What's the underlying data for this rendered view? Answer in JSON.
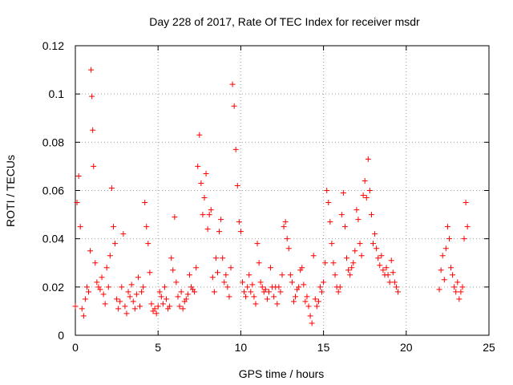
{
  "chart_data": {
    "type": "scatter",
    "title": "Day 228 of 2017, Rate Of TEC Index for receiver msdr",
    "xlabel": "GPS time / hours",
    "ylabel": "ROTI / TECUs",
    "xlim": [
      0,
      25
    ],
    "ylim": [
      0,
      0.12
    ],
    "x_ticks": [
      0,
      5,
      10,
      15,
      20,
      25
    ],
    "x_tick_labels": [
      "0",
      "5",
      "10",
      "15",
      "20",
      "25"
    ],
    "y_ticks": [
      0,
      0.02,
      0.04,
      0.06,
      0.08,
      0.1,
      0.12
    ],
    "y_tick_labels": [
      "0",
      "0.02",
      "0.04",
      "0.06",
      "0.08",
      "0.1",
      "0.12"
    ],
    "grid": true,
    "marker": "+",
    "color": "#ff0000",
    "series": [
      {
        "name": "",
        "x": [
          0.0,
          0.1,
          0.2,
          0.3,
          0.4,
          0.5,
          0.6,
          0.7,
          0.8,
          0.9,
          0.95,
          1.0,
          1.05,
          1.1,
          1.2,
          1.3,
          1.4,
          1.5,
          1.6,
          1.7,
          1.8,
          1.9,
          2.0,
          2.1,
          2.2,
          2.3,
          2.4,
          2.5,
          2.6,
          2.7,
          2.8,
          2.9,
          3.0,
          3.1,
          3.2,
          3.3,
          3.4,
          3.5,
          3.6,
          3.7,
          3.8,
          3.9,
          4.0,
          4.1,
          4.2,
          4.3,
          4.4,
          4.5,
          4.6,
          4.7,
          4.8,
          4.9,
          5.0,
          5.1,
          5.2,
          5.3,
          5.4,
          5.5,
          5.6,
          5.7,
          5.8,
          5.9,
          6.0,
          6.1,
          6.2,
          6.3,
          6.4,
          6.5,
          6.6,
          6.7,
          6.8,
          6.9,
          7.0,
          7.1,
          7.2,
          7.3,
          7.4,
          7.5,
          7.6,
          7.7,
          7.8,
          7.9,
          8.0,
          8.1,
          8.2,
          8.3,
          8.4,
          8.5,
          8.6,
          8.7,
          8.8,
          8.9,
          9.0,
          9.1,
          9.2,
          9.3,
          9.4,
          9.5,
          9.6,
          9.7,
          9.8,
          9.9,
          10.0,
          10.1,
          10.2,
          10.3,
          10.4,
          10.5,
          10.6,
          10.7,
          10.8,
          10.9,
          11.0,
          11.1,
          11.2,
          11.3,
          11.4,
          11.5,
          11.6,
          11.7,
          11.8,
          11.9,
          12.0,
          12.1,
          12.2,
          12.3,
          12.4,
          12.5,
          12.6,
          12.7,
          12.8,
          12.9,
          13.0,
          13.1,
          13.2,
          13.3,
          13.4,
          13.5,
          13.6,
          13.7,
          13.8,
          13.9,
          14.0,
          14.1,
          14.2,
          14.3,
          14.4,
          14.5,
          14.6,
          14.7,
          14.8,
          14.9,
          15.0,
          15.1,
          15.2,
          15.3,
          15.4,
          15.5,
          15.6,
          15.7,
          15.8,
          15.9,
          16.0,
          16.1,
          16.2,
          16.3,
          16.4,
          16.5,
          16.6,
          16.7,
          16.8,
          16.9,
          17.0,
          17.1,
          17.2,
          17.3,
          17.4,
          17.5,
          17.6,
          17.7,
          17.8,
          17.9,
          18.0,
          18.1,
          18.2,
          18.3,
          18.4,
          18.5,
          18.6,
          18.7,
          18.8,
          18.9,
          19.0,
          19.1,
          19.2,
          19.3,
          19.4,
          19.5,
          22.0,
          22.1,
          22.2,
          22.3,
          22.4,
          22.5,
          22.6,
          22.7,
          22.8,
          22.9,
          23.0,
          23.1,
          23.2,
          23.3,
          23.4,
          23.5,
          23.6,
          23.7
        ],
        "y": [
          0.012,
          0.055,
          0.066,
          0.045,
          0.011,
          0.008,
          0.015,
          0.02,
          0.018,
          0.035,
          0.11,
          0.099,
          0.085,
          0.07,
          0.03,
          0.022,
          0.02,
          0.019,
          0.024,
          0.017,
          0.013,
          0.028,
          0.02,
          0.033,
          0.061,
          0.045,
          0.038,
          0.015,
          0.011,
          0.014,
          0.02,
          0.042,
          0.012,
          0.009,
          0.018,
          0.016,
          0.021,
          0.014,
          0.011,
          0.017,
          0.024,
          0.012,
          0.018,
          0.02,
          0.055,
          0.045,
          0.038,
          0.026,
          0.013,
          0.01,
          0.011,
          0.009,
          0.012,
          0.018,
          0.016,
          0.013,
          0.02,
          0.015,
          0.011,
          0.012,
          0.032,
          0.027,
          0.049,
          0.022,
          0.016,
          0.012,
          0.018,
          0.011,
          0.014,
          0.015,
          0.017,
          0.025,
          0.02,
          0.019,
          0.018,
          0.028,
          0.07,
          0.083,
          0.063,
          0.05,
          0.057,
          0.067,
          0.044,
          0.05,
          0.052,
          0.024,
          0.018,
          0.032,
          0.026,
          0.043,
          0.048,
          0.032,
          0.022,
          0.025,
          0.02,
          0.016,
          0.028,
          0.104,
          0.095,
          0.077,
          0.062,
          0.047,
          0.043,
          0.022,
          0.018,
          0.016,
          0.02,
          0.025,
          0.018,
          0.021,
          0.016,
          0.013,
          0.038,
          0.03,
          0.022,
          0.02,
          0.018,
          0.019,
          0.015,
          0.018,
          0.028,
          0.02,
          0.016,
          0.02,
          0.013,
          0.02,
          0.018,
          0.025,
          0.045,
          0.047,
          0.04,
          0.036,
          0.025,
          0.022,
          0.014,
          0.016,
          0.019,
          0.02,
          0.027,
          0.028,
          0.021,
          0.014,
          0.016,
          0.012,
          0.008,
          0.005,
          0.033,
          0.015,
          0.012,
          0.014,
          0.02,
          0.018,
          0.022,
          0.03,
          0.06,
          0.055,
          0.047,
          0.038,
          0.03,
          0.025,
          0.02,
          0.018,
          0.02,
          0.05,
          0.059,
          0.045,
          0.032,
          0.027,
          0.025,
          0.028,
          0.03,
          0.035,
          0.052,
          0.048,
          0.038,
          0.033,
          0.058,
          0.064,
          0.057,
          0.073,
          0.06,
          0.05,
          0.038,
          0.042,
          0.036,
          0.032,
          0.029,
          0.033,
          0.027,
          0.025,
          0.028,
          0.025,
          0.022,
          0.031,
          0.026,
          0.022,
          0.02,
          0.018,
          0.019,
          0.027,
          0.033,
          0.023,
          0.036,
          0.045,
          0.04,
          0.028,
          0.025,
          0.02,
          0.018,
          0.022,
          0.015,
          0.018,
          0.02,
          0.04,
          0.055,
          0.045
        ]
      }
    ]
  }
}
